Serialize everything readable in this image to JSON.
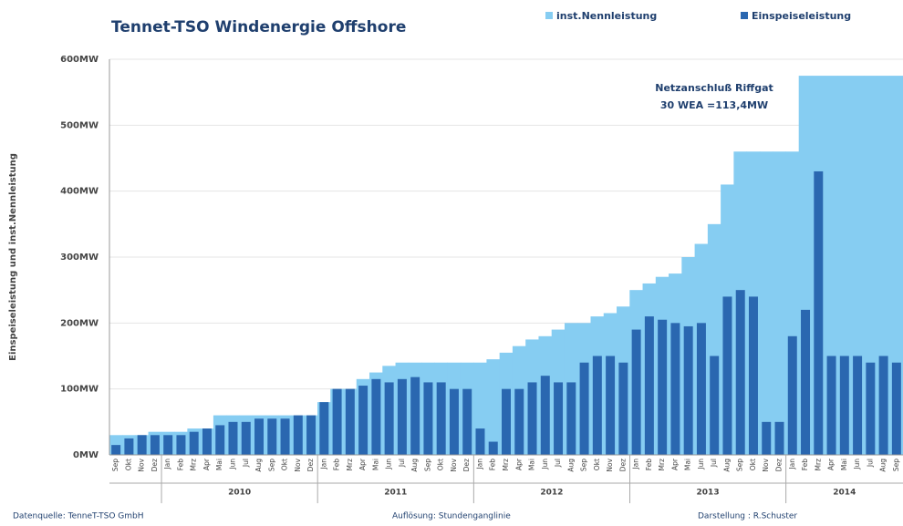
{
  "chart_data": {
    "type": "bar",
    "title": "Tennet-TSO  Windenergie Offshore",
    "ylabel": "Einspeiseleistung und inst.Nennleistung",
    "annotation": [
      "Netzanschluß  Riffgat",
      "30 WEA =113,4MW"
    ],
    "footer": [
      "Datenquelle: TenneT-TSO GmbH",
      "Auflösung: Stundenganglinie",
      "Darstellung : R.Schuster"
    ],
    "categories": [
      "Sep",
      "Okt",
      "Nov",
      "Dez",
      "Jan",
      "Feb",
      "Mrz",
      "Apr",
      "Mai",
      "Jun",
      "Jul",
      "Aug",
      "Sep",
      "Okt",
      "Nov",
      "Dez",
      "Jan",
      "Feb",
      "Mrz",
      "Apr",
      "Mai",
      "Jun",
      "Jul",
      "Aug",
      "Sep",
      "Okt",
      "Nov",
      "Dez",
      "Jan",
      "Feb",
      "Mrz",
      "Apr",
      "Mai",
      "Jun",
      "Jul",
      "Aug",
      "Sep",
      "Okt",
      "Nov",
      "Dez",
      "Jan",
      "Feb",
      "Mrz",
      "Apr",
      "Mai",
      "Jun",
      "Jul",
      "Aug",
      "Sep",
      "Okt",
      "Nov",
      "Dez",
      "Jan",
      "Feb",
      "Mrz",
      "Apr",
      "Mai",
      "Jun",
      "Jul",
      "Aug",
      "Sep"
    ],
    "year_labels": [
      "2010",
      "2011",
      "2012",
      "2013",
      "2014"
    ],
    "series": [
      {
        "name": "inst.Nennleistung",
        "color": "#86cdf2",
        "values": [
          30,
          30,
          30,
          35,
          35,
          35,
          40,
          40,
          60,
          60,
          60,
          60,
          60,
          60,
          60,
          60,
          80,
          100,
          100,
          115,
          125,
          135,
          140,
          140,
          140,
          140,
          140,
          140,
          140,
          145,
          155,
          165,
          175,
          180,
          190,
          200,
          200,
          210,
          215,
          225,
          250,
          260,
          270,
          275,
          300,
          320,
          350,
          410,
          460,
          460,
          460,
          460,
          460,
          575,
          575,
          575,
          575,
          575,
          575,
          575,
          575
        ]
      },
      {
        "name": "Einspeiseleistung",
        "color": "#2a67b0",
        "values": [
          15,
          25,
          30,
          30,
          30,
          30,
          35,
          40,
          45,
          50,
          50,
          55,
          55,
          55,
          60,
          60,
          80,
          100,
          100,
          105,
          115,
          110,
          115,
          118,
          110,
          110,
          100,
          100,
          40,
          20,
          100,
          100,
          110,
          120,
          110,
          110,
          140,
          150,
          150,
          140,
          190,
          210,
          205,
          200,
          195,
          200,
          150,
          240,
          250,
          240,
          50,
          50,
          180,
          220,
          430,
          150,
          150,
          150,
          140,
          150,
          140
        ]
      }
    ],
    "ylim": [
      0,
      600
    ],
    "yticks": [
      {
        "value": 0,
        "label": "0MW"
      },
      {
        "value": 100,
        "label": "100MW"
      },
      {
        "value": 200,
        "label": "200MW"
      },
      {
        "value": 300,
        "label": "300MW"
      },
      {
        "value": 400,
        "label": "400MW"
      },
      {
        "value": 500,
        "label": "500MW"
      },
      {
        "value": 600,
        "label": "600MW"
      }
    ],
    "grid": true,
    "legend": "top right"
  }
}
